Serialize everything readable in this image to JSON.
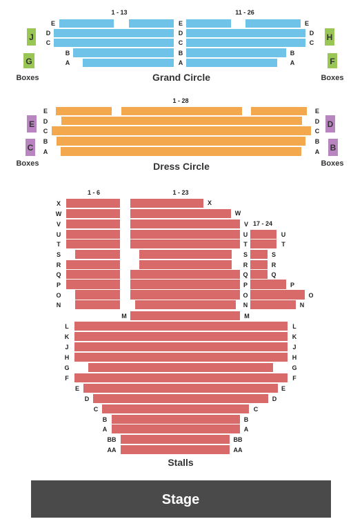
{
  "colors": {
    "grand_circle": "#6fc3e8",
    "dress_circle": "#f3a84d",
    "stalls": "#d86a6a",
    "boxes_green": "#9ac656",
    "boxes_purple": "#b985c0",
    "stage": "#4a4a4a"
  },
  "grand_circle": {
    "title": "Grand Circle",
    "range_left": "1 - 13",
    "range_right": "11 - 26",
    "rows": [
      "E",
      "D",
      "C",
      "B",
      "A"
    ],
    "boxes_left": [
      "J",
      "G"
    ],
    "boxes_right": [
      "H",
      "F"
    ],
    "boxes_label": "Boxes"
  },
  "dress_circle": {
    "title": "Dress Circle",
    "range": "1 - 28",
    "rows": [
      "E",
      "D",
      "C",
      "B",
      "A"
    ],
    "boxes_left": [
      "E",
      "C"
    ],
    "boxes_right": [
      "D",
      "B"
    ],
    "boxes_label": "Boxes"
  },
  "stalls": {
    "title": "Stalls",
    "range_left": "1 - 6",
    "range_center": "1 - 23",
    "range_right": "17 - 24",
    "rows": [
      "X",
      "W",
      "V",
      "U",
      "T",
      "S",
      "R",
      "Q",
      "P",
      "O",
      "N",
      "M",
      "L",
      "K",
      "J",
      "H",
      "G",
      "F",
      "E",
      "D",
      "C",
      "B",
      "A",
      "BB",
      "AA"
    ]
  },
  "stage": {
    "label": "Stage"
  }
}
